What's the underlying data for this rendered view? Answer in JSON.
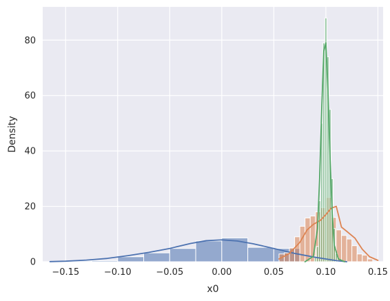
{
  "chart_data": {
    "type": "histogram",
    "xlabel": "x0",
    "ylabel": "Density",
    "xlim": [
      -0.172,
      0.155
    ],
    "ylim": [
      0,
      92
    ],
    "x_ticks": [
      -0.15,
      -0.1,
      -0.05,
      0.0,
      0.05,
      0.1,
      0.15
    ],
    "x_tick_labels": [
      "−0.15",
      "−0.10",
      "−0.05",
      "0.00",
      "0.05",
      "0.10",
      "0.15"
    ],
    "y_ticks": [
      0,
      20,
      40,
      60,
      80
    ],
    "y_tick_labels": [
      "0",
      "20",
      "40",
      "60",
      "80"
    ],
    "grid": true,
    "background": "#eaeaf2",
    "series": [
      {
        "color": "#4c72b0",
        "bin_edges": [
          -0.1625,
          -0.15,
          -0.125,
          -0.1,
          -0.075,
          -0.05,
          -0.025,
          0.0,
          0.025,
          0.05,
          0.075
        ],
        "densities": [
          0.15,
          0.3,
          0.4,
          1.8,
          3.2,
          4.8,
          7.5,
          8.6,
          5.2,
          4.8
        ],
        "kde_x": [
          -0.165,
          -0.15,
          -0.13,
          -0.11,
          -0.09,
          -0.07,
          -0.05,
          -0.03,
          -0.015,
          0.0,
          0.015,
          0.03,
          0.05,
          0.07,
          0.09,
          0.11,
          0.12
        ],
        "kde_y": [
          0.05,
          0.2,
          0.6,
          1.2,
          2.2,
          3.4,
          4.8,
          6.6,
          7.6,
          7.9,
          7.5,
          6.5,
          4.8,
          3.0,
          1.6,
          0.4,
          0.0
        ]
      },
      {
        "color": "#dd8452",
        "bin_edges": [
          0.055,
          0.06,
          0.065,
          0.07,
          0.075,
          0.08,
          0.085,
          0.09,
          0.095,
          0.1,
          0.105,
          0.11,
          0.115,
          0.12,
          0.125,
          0.13,
          0.135,
          0.14,
          0.145
        ],
        "densities": [
          2.8,
          3.2,
          5.0,
          9.0,
          12.8,
          15.8,
          16.5,
          18.0,
          19.5,
          23.2,
          16.0,
          11.5,
          9.5,
          8.2,
          5.8,
          2.8,
          2.4,
          1.0
        ],
        "kde_x": [
          0.055,
          0.065,
          0.075,
          0.082,
          0.088,
          0.095,
          0.1,
          0.105,
          0.11,
          0.115,
          0.12,
          0.128,
          0.135,
          0.142,
          0.15
        ],
        "kde_y": [
          1.0,
          3.0,
          7.0,
          11.5,
          13.5,
          15.0,
          17.0,
          19.3,
          20.0,
          12.5,
          11.0,
          8.5,
          4.5,
          1.8,
          0.5
        ]
      },
      {
        "color": "#55a868",
        "bin_edges": [
          0.089,
          0.091,
          0.093,
          0.095,
          0.097,
          0.099,
          0.101,
          0.103,
          0.105,
          0.107,
          0.109,
          0.111
        ],
        "densities": [
          2.0,
          5.5,
          22.0,
          50.0,
          79.0,
          88.0,
          74.0,
          55.0,
          30.0,
          12.0,
          3.0
        ],
        "kde_x": [
          0.08,
          0.088,
          0.092,
          0.094,
          0.096,
          0.098,
          0.1,
          0.102,
          0.104,
          0.106,
          0.108,
          0.112,
          0.118
        ],
        "kde_y": [
          0.0,
          2.0,
          12.0,
          30.0,
          55.0,
          76.0,
          79.0,
          62.0,
          38.0,
          18.0,
          6.0,
          1.0,
          0.0
        ]
      }
    ]
  }
}
